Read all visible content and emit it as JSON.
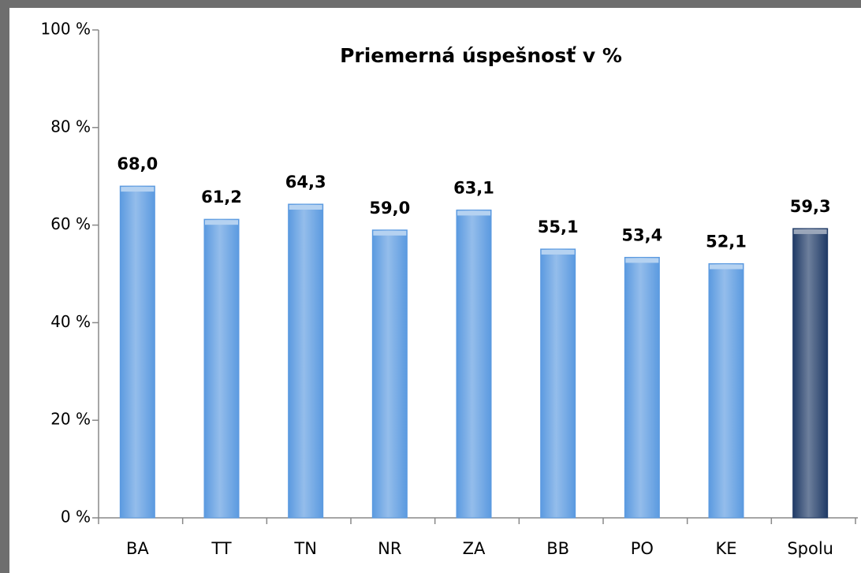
{
  "chart_data": {
    "type": "bar",
    "title": "Priemerná úspešnosť v %",
    "categories": [
      "BA",
      "TT",
      "TN",
      "NR",
      "ZA",
      "BB",
      "PO",
      "KE",
      "Spolu"
    ],
    "values": [
      68.0,
      61.2,
      64.3,
      59.0,
      63.1,
      55.1,
      53.4,
      52.1,
      59.3
    ],
    "value_labels": [
      "68,0",
      "61,2",
      "64,3",
      "59,0",
      "63,1",
      "55,1",
      "53,4",
      "52,1",
      "59,3"
    ],
    "colors": [
      "#5b9ae0",
      "#5b9ae0",
      "#5b9ae0",
      "#5b9ae0",
      "#5b9ae0",
      "#5b9ae0",
      "#5b9ae0",
      "#5b9ae0",
      "#1f3a66"
    ],
    "ylim": [
      0,
      100
    ],
    "yticks": [
      {
        "value": 0,
        "label": "0 %"
      },
      {
        "value": 20,
        "label": "20 %"
      },
      {
        "value": 40,
        "label": "40 %"
      },
      {
        "value": 60,
        "label": "60 %"
      },
      {
        "value": 80,
        "label": "80 %"
      },
      {
        "value": 100,
        "label": "100 %"
      }
    ]
  }
}
